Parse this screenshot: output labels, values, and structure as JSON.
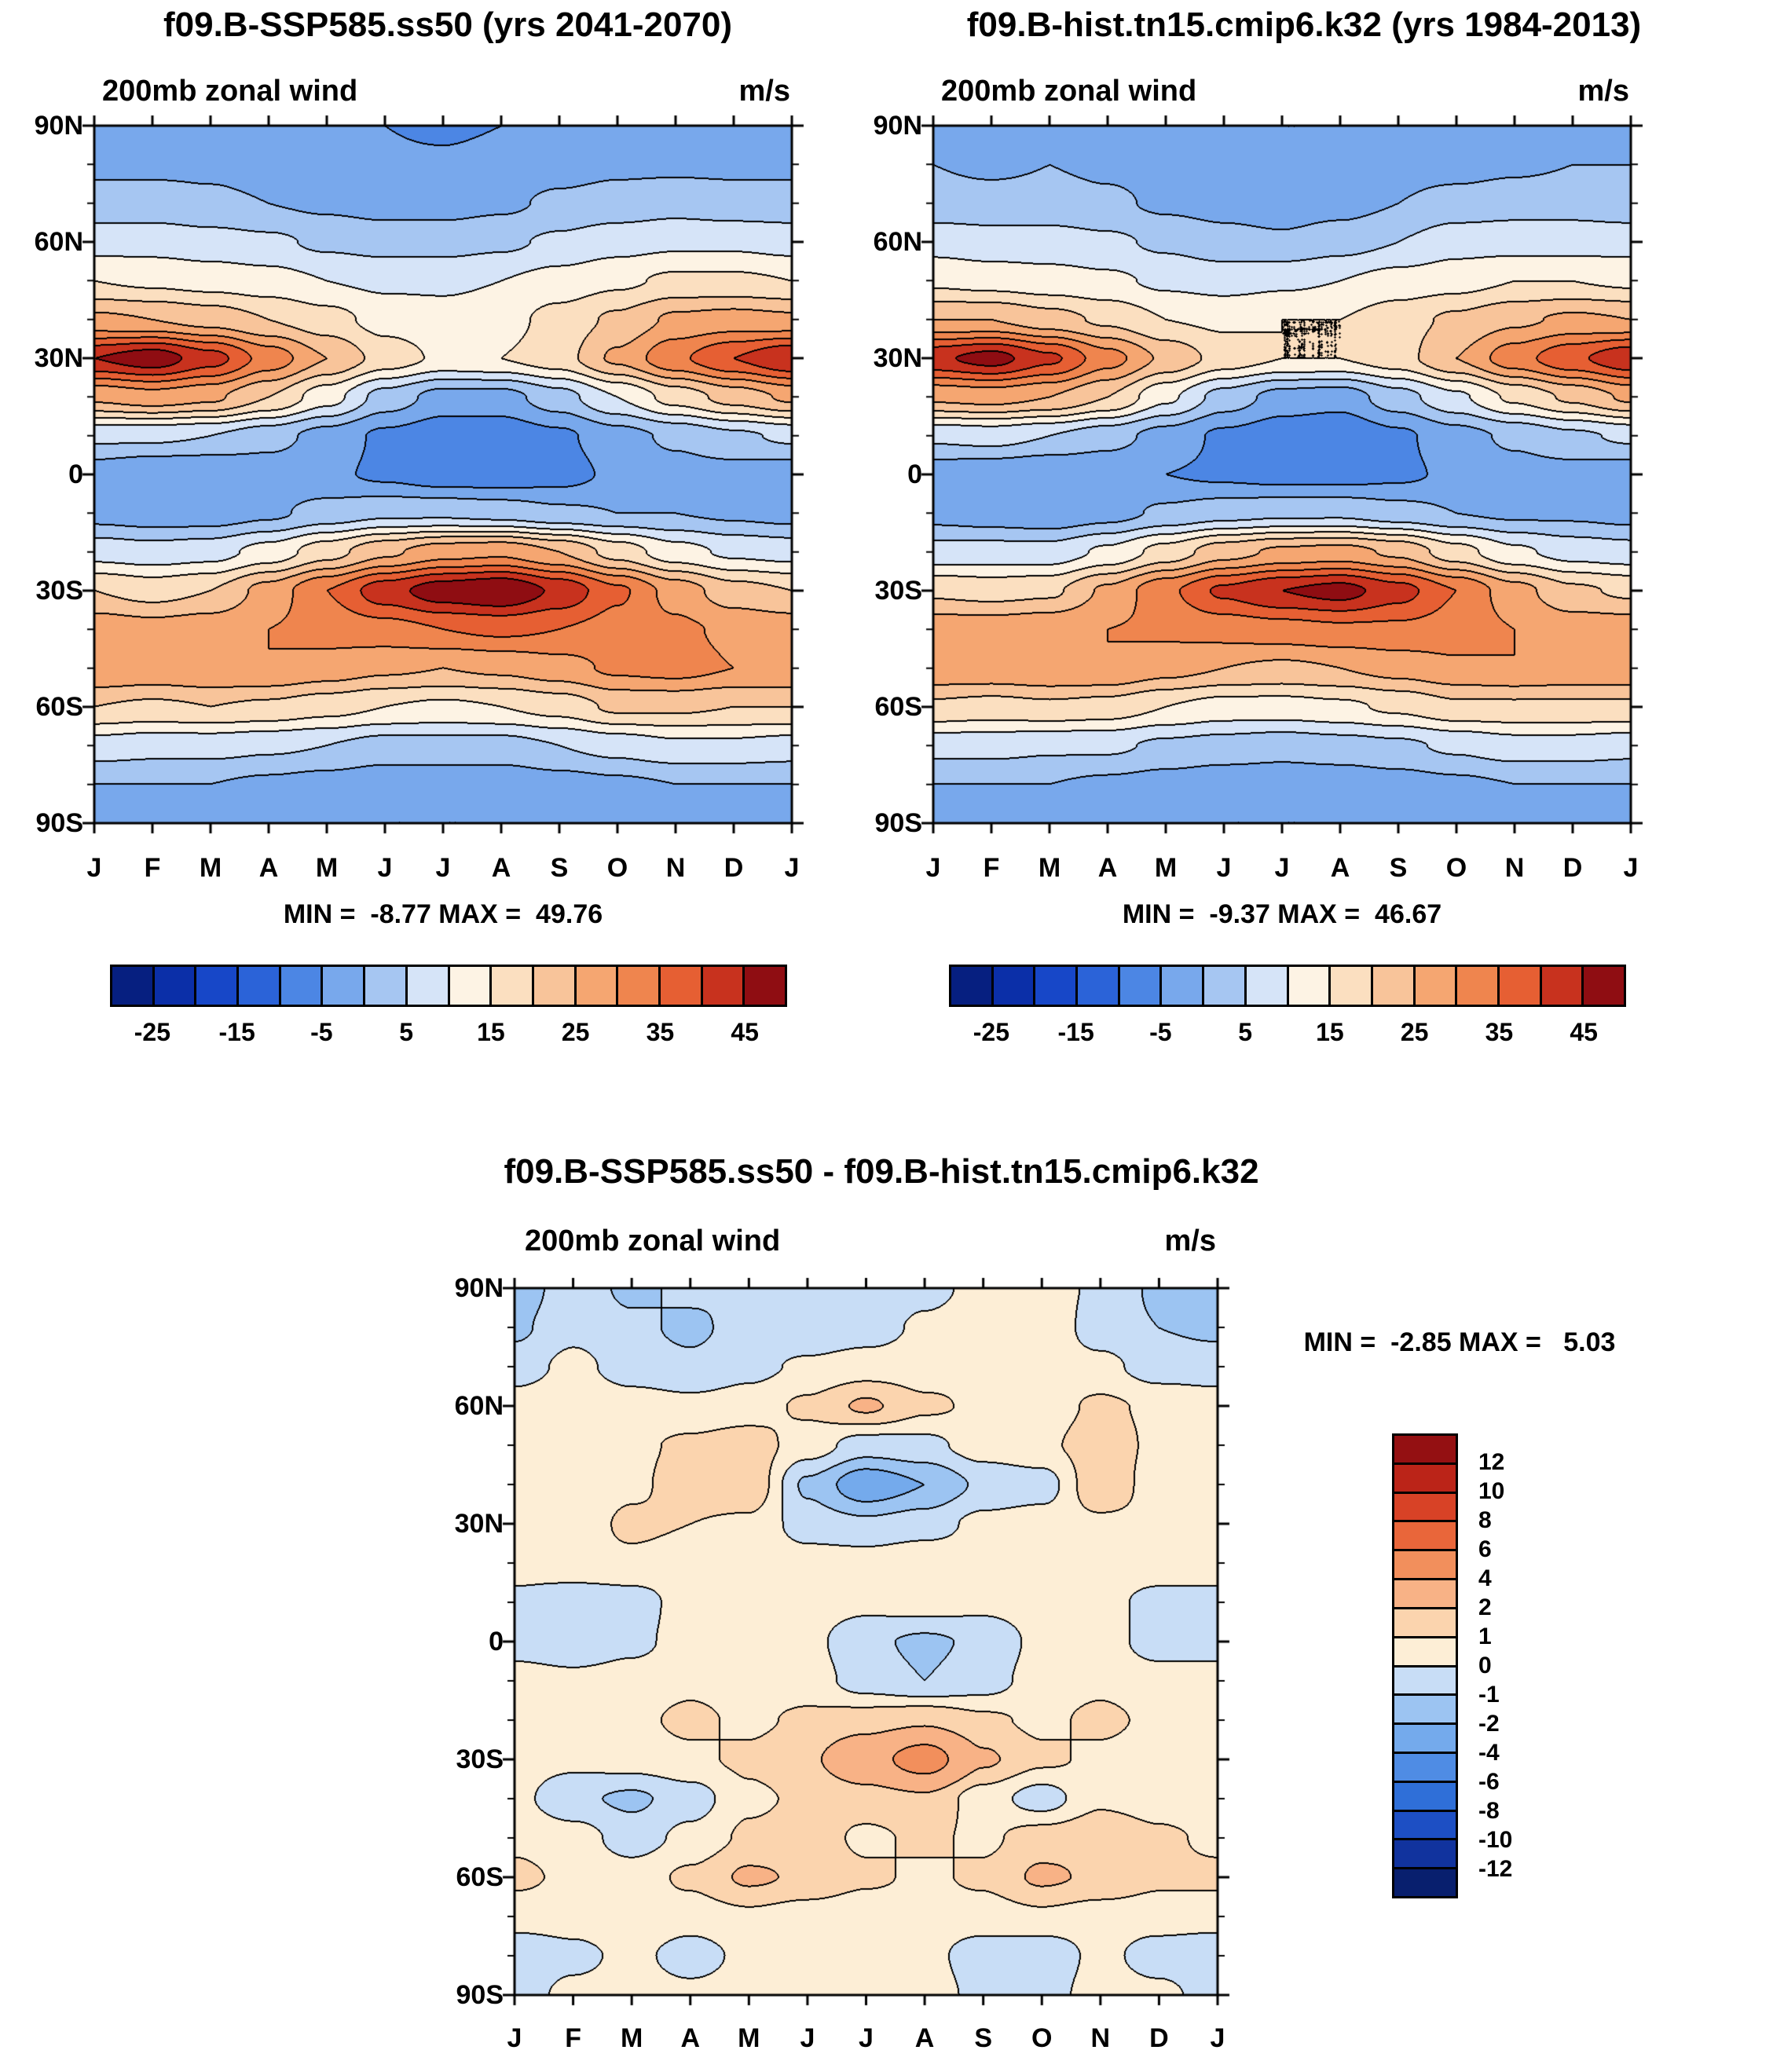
{
  "page": {
    "background": "#ffffff",
    "text_color": "#000000"
  },
  "panels": {
    "ssp": {
      "title": "f09.B-SSP585.ss50 (yrs 2041-2070)",
      "subtitle": "200mb zonal wind",
      "units": "m/s",
      "stats": "MIN =  -8.77 MAX =  49.76"
    },
    "hist": {
      "title": "f09.B-hist.tn15.cmip6.k32 (yrs 1984-2013)",
      "subtitle": "200mb zonal wind",
      "units": "m/s",
      "stats": "MIN =  -9.37 MAX =  46.67"
    },
    "diff": {
      "title": "f09.B-SSP585.ss50 - f09.B-hist.tn15.cmip6.k32",
      "subtitle": "200mb zonal wind",
      "units": "m/s",
      "stats": "MIN =  -2.85 MAX =   5.03"
    }
  },
  "axes": {
    "lat_labels": [
      "90N",
      "60N",
      "30N",
      "0",
      "30S",
      "60S",
      "90S"
    ],
    "month_labels": [
      "J",
      "F",
      "M",
      "A",
      "M",
      "J",
      "J",
      "A",
      "S",
      "O",
      "N",
      "D",
      "J"
    ]
  },
  "colorbar_main": {
    "labels": [
      "-25",
      "-15",
      "-5",
      "5",
      "15",
      "25",
      "35",
      "45"
    ],
    "levels": [
      -25,
      -20,
      -15,
      -10,
      -5,
      0,
      5,
      10,
      15,
      20,
      25,
      30,
      35,
      40,
      45
    ],
    "colors": [
      "#061f80",
      "#0b2fa8",
      "#1747c8",
      "#2b63d8",
      "#4c86e4",
      "#78a8ec",
      "#a6c6f2",
      "#d6e4f8",
      "#fdf3e4",
      "#fbdfc0",
      "#f8c49a",
      "#f5a671",
      "#ef854e",
      "#e65f33",
      "#c8321e",
      "#8f0d12"
    ]
  },
  "colorbar_diff": {
    "labels_top_to_bottom": [
      "12",
      "10",
      "8",
      "6",
      "4",
      "2",
      "1",
      "0",
      "-1",
      "-2",
      "-4",
      "-6",
      "-8",
      "-10",
      "-12"
    ],
    "levels": [
      -12,
      -10,
      -8,
      -6,
      -4,
      -2,
      -1,
      0,
      1,
      2,
      4,
      6,
      8,
      10,
      12
    ],
    "colors_low_to_high": [
      "#081f6e",
      "#11339e",
      "#1d4fc4",
      "#2f6fd8",
      "#4f8ce4",
      "#74aaec",
      "#9cc4f2",
      "#c8ddf6",
      "#fdeed6",
      "#fbd4ae",
      "#f8b286",
      "#f28f5c",
      "#e9663a",
      "#d84226",
      "#bb2418",
      "#941012"
    ]
  },
  "chart_data": [
    {
      "type": "heatmap",
      "name": "f09.B-SSP585.ss50",
      "period": "yrs 2041-2070",
      "title": "200mb zonal wind",
      "units": "m/s",
      "x_labels": [
        "J",
        "F",
        "M",
        "A",
        "M",
        "J",
        "J",
        "A",
        "S",
        "O",
        "N",
        "D",
        "J"
      ],
      "y_tick_labels": [
        "90N",
        "60N",
        "30N",
        "0",
        "30S",
        "60S",
        "90S"
      ],
      "lat_values": [
        90,
        80,
        70,
        60,
        50,
        40,
        30,
        20,
        10,
        0,
        -10,
        -20,
        -30,
        -40,
        -50,
        -60,
        -70,
        -80,
        -90
      ],
      "min": -8.77,
      "max": 49.76,
      "contour_interval": 5,
      "values": [
        [
          -2,
          -2,
          -2,
          -3,
          -4,
          -5,
          -6,
          -5,
          -3,
          -2,
          -2,
          -2,
          -2
        ],
        [
          -1,
          -1,
          -1,
          -2,
          -3,
          -4,
          -4,
          -3,
          -2,
          -1,
          -1,
          -1,
          -1
        ],
        [
          2,
          2,
          1,
          0,
          -1,
          -2,
          -2,
          -1,
          1,
          2,
          3,
          2,
          2
        ],
        [
          8,
          8,
          7,
          6,
          4,
          3,
          3,
          4,
          6,
          8,
          9,
          9,
          8
        ],
        [
          15,
          14,
          13,
          12,
          10,
          9,
          9,
          10,
          12,
          14,
          16,
          16,
          15
        ],
        [
          26,
          25,
          23,
          20,
          17,
          13,
          12,
          13,
          17,
          21,
          26,
          27,
          26
        ],
        [
          45,
          48,
          42,
          33,
          25,
          18,
          14,
          15,
          18,
          26,
          34,
          40,
          45
        ],
        [
          26,
          28,
          26,
          20,
          12,
          3,
          -2,
          -2,
          3,
          10,
          17,
          22,
          26
        ],
        [
          6,
          6,
          5,
          2,
          -2,
          -6,
          -8,
          -8,
          -6,
          -2,
          1,
          4,
          6
        ],
        [
          -3,
          -5,
          -5,
          -3,
          -4,
          -6,
          -8,
          -8,
          -7,
          -4,
          -2,
          -2,
          -3
        ],
        [
          -2,
          -3,
          -3,
          -1,
          2,
          4,
          4,
          3,
          1,
          0,
          0,
          -1,
          -2
        ],
        [
          8,
          7,
          8,
          12,
          18,
          24,
          28,
          29,
          25,
          18,
          12,
          9,
          8
        ],
        [
          20,
          18,
          20,
          27,
          35,
          43,
          48,
          50,
          44,
          36,
          28,
          22,
          20
        ],
        [
          28,
          27,
          28,
          30,
          32,
          33,
          35,
          36,
          35,
          33,
          31,
          29,
          28
        ],
        [
          30,
          29,
          30,
          30,
          28,
          26,
          25,
          26,
          28,
          31,
          32,
          30,
          30
        ],
        [
          20,
          19,
          20,
          19,
          17,
          15,
          14,
          15,
          17,
          21,
          21,
          20,
          20
        ],
        [
          8,
          7,
          7,
          6,
          5,
          3,
          3,
          3,
          5,
          7,
          9,
          9,
          8
        ],
        [
          0,
          0,
          0,
          -1,
          -2,
          -3,
          -3,
          -3,
          -2,
          -1,
          0,
          0,
          0
        ],
        [
          -3,
          -3,
          -3,
          -4,
          -4,
          -5,
          -5,
          -5,
          -4,
          -4,
          -3,
          -3,
          -3
        ]
      ]
    },
    {
      "type": "heatmap",
      "name": "f09.B-hist.tn15.cmip6.k32",
      "period": "yrs 1984-2013",
      "title": "200mb zonal wind",
      "units": "m/s",
      "x_labels": [
        "J",
        "F",
        "M",
        "A",
        "M",
        "J",
        "J",
        "A",
        "S",
        "O",
        "N",
        "D",
        "J"
      ],
      "y_tick_labels": [
        "90N",
        "60N",
        "30N",
        "0",
        "30S",
        "60S",
        "90S"
      ],
      "lat_values": [
        90,
        80,
        70,
        60,
        50,
        40,
        30,
        20,
        10,
        0,
        -10,
        -20,
        -30,
        -40,
        -50,
        -60,
        -70,
        -80,
        -90
      ],
      "min": -9.37,
      "max": 46.67,
      "contour_interval": 5,
      "values": [
        [
          -1,
          -2,
          -1,
          -2,
          -3,
          -4,
          -5,
          -5,
          -3,
          -2,
          -2,
          -1,
          -1
        ],
        [
          0,
          -1,
          0,
          -1,
          -2,
          -3,
          -4,
          -3,
          -2,
          -2,
          -1,
          0,
          0
        ],
        [
          2,
          2,
          2,
          1,
          -1,
          -2,
          -3,
          -2,
          0,
          2,
          3,
          3,
          2
        ],
        [
          8,
          7,
          7,
          6,
          4,
          2,
          1,
          3,
          5,
          8,
          8,
          8,
          8
        ],
        [
          14,
          13,
          12,
          11,
          9,
          8,
          9,
          10,
          12,
          13,
          15,
          15,
          14
        ],
        [
          25,
          25,
          22,
          19,
          15,
          14,
          15,
          15,
          18,
          21,
          24,
          26,
          25
        ],
        [
          44,
          47,
          41,
          32,
          24,
          18,
          15,
          15,
          18,
          25,
          33,
          39,
          44
        ],
        [
          26,
          27,
          25,
          20,
          11,
          3,
          -2,
          -3,
          3,
          9,
          16,
          21,
          26
        ],
        [
          6,
          7,
          5,
          2,
          -2,
          -6,
          -8,
          -9,
          -6,
          -2,
          1,
          4,
          6
        ],
        [
          -3,
          -4,
          -5,
          -4,
          -5,
          -6,
          -7,
          -7,
          -6,
          -4,
          -2,
          -2,
          -3
        ],
        [
          -2,
          -3,
          -4,
          -2,
          1,
          3,
          4,
          4,
          2,
          0,
          -1,
          -1,
          -2
        ],
        [
          7,
          7,
          7,
          11,
          17,
          23,
          26,
          27,
          24,
          17,
          11,
          8,
          7
        ],
        [
          19,
          18,
          19,
          26,
          34,
          41,
          45,
          47,
          42,
          35,
          27,
          21,
          19
        ],
        [
          28,
          28,
          29,
          30,
          31,
          32,
          33,
          34,
          34,
          33,
          30,
          28,
          28
        ],
        [
          29,
          29,
          30,
          30,
          27,
          25,
          24,
          25,
          27,
          29,
          30,
          29,
          29
        ],
        [
          19,
          18,
          19,
          18,
          15,
          13,
          13,
          14,
          16,
          19,
          19,
          19,
          19
        ],
        [
          7,
          7,
          6,
          6,
          4,
          3,
          2,
          3,
          4,
          6,
          8,
          8,
          7
        ],
        [
          0,
          0,
          0,
          -1,
          -2,
          -3,
          -3,
          -3,
          -2,
          -1,
          0,
          0,
          0
        ],
        [
          -3,
          -3,
          -3,
          -4,
          -4,
          -5,
          -5,
          -5,
          -4,
          -4,
          -3,
          -3,
          -3
        ]
      ]
    },
    {
      "type": "heatmap",
      "name": "f09.B-SSP585.ss50 - f09.B-hist.tn15.cmip6.k32",
      "title": "200mb zonal wind",
      "units": "m/s",
      "x_labels": [
        "J",
        "F",
        "M",
        "A",
        "M",
        "J",
        "J",
        "A",
        "S",
        "O",
        "N",
        "D",
        "J"
      ],
      "y_tick_labels": [
        "90N",
        "60N",
        "30N",
        "0",
        "30S",
        "60S",
        "90S"
      ],
      "lat_values": [
        90,
        80,
        70,
        60,
        50,
        40,
        30,
        20,
        10,
        0,
        -10,
        -20,
        -30,
        -40,
        -50,
        -60,
        -70,
        -80,
        -90
      ],
      "min": -2.85,
      "max": 5.03,
      "contour_levels": [
        -12,
        -10,
        -8,
        -6,
        -4,
        -2,
        -1,
        0,
        1,
        2,
        4,
        6,
        8,
        10,
        12
      ],
      "values": [
        [
          -1.5,
          -0.5,
          -1.2,
          -0.8,
          -1.0,
          -0.5,
          -1.0,
          -0.3,
          0.3,
          0.5,
          -0.2,
          -1.2,
          -1.5
        ],
        [
          -1.2,
          -0.3,
          -0.8,
          -1.2,
          -0.6,
          -0.8,
          -0.5,
          0.2,
          0.5,
          0.8,
          -0.5,
          -1.0,
          -1.2
        ],
        [
          -0.5,
          0.3,
          -0.5,
          -0.8,
          -0.3,
          0.2,
          0.5,
          0.5,
          0.8,
          0.5,
          0.3,
          -0.5,
          -0.5
        ],
        [
          0.5,
          0.8,
          0.5,
          0.3,
          0.5,
          1.2,
          2.2,
          1.2,
          0.8,
          0.5,
          1.2,
          0.8,
          0.5
        ],
        [
          0.8,
          0.5,
          0.8,
          1.2,
          1.5,
          0.5,
          -0.5,
          -0.3,
          0.5,
          0.8,
          1.5,
          0.8,
          0.8
        ],
        [
          0.5,
          0.3,
          0.8,
          1.5,
          1.8,
          -1.2,
          -2.8,
          -2.0,
          -0.8,
          -0.5,
          1.8,
          0.5,
          0.5
        ],
        [
          0.8,
          0.5,
          1.2,
          1.0,
          0.8,
          -0.5,
          -0.8,
          -0.5,
          0.3,
          0.5,
          0.8,
          0.8,
          0.8
        ],
        [
          0.5,
          0.8,
          0.8,
          0.5,
          0.8,
          0.5,
          0.5,
          0.8,
          0.5,
          0.8,
          0.5,
          0.5,
          0.5
        ],
        [
          -0.3,
          -0.8,
          -0.5,
          0.5,
          0.8,
          0.5,
          0.3,
          0.5,
          0.3,
          0.5,
          0.3,
          -0.3,
          -0.3
        ],
        [
          -0.5,
          -0.8,
          -0.3,
          0.5,
          0.5,
          0.3,
          -0.8,
          -1.2,
          -0.8,
          0.3,
          0.5,
          -0.5,
          -0.5
        ],
        [
          0.5,
          0.3,
          0.5,
          0.8,
          0.5,
          0.5,
          -0.5,
          -1.0,
          -0.5,
          0.5,
          0.8,
          0.5,
          0.5
        ],
        [
          0.8,
          0.5,
          0.8,
          1.2,
          0.8,
          1.2,
          1.5,
          1.8,
          1.2,
          0.8,
          1.2,
          0.8,
          0.8
        ],
        [
          0.5,
          0.3,
          0.5,
          0.8,
          1.2,
          1.8,
          3.2,
          5.0,
          2.2,
          1.2,
          0.8,
          0.5,
          0.5
        ],
        [
          0.3,
          -0.8,
          -1.2,
          -0.5,
          0.8,
          1.2,
          1.5,
          1.8,
          0.5,
          -0.5,
          0.8,
          0.5,
          0.3
        ],
        [
          0.8,
          0.5,
          -0.5,
          0.3,
          1.2,
          1.5,
          0.8,
          1.2,
          0.8,
          1.5,
          1.8,
          1.2,
          0.8
        ],
        [
          1.2,
          0.8,
          0.5,
          1.2,
          2.2,
          1.8,
          1.2,
          0.8,
          1.2,
          2.2,
          1.8,
          1.2,
          1.2
        ],
        [
          0.5,
          0.5,
          0.8,
          0.5,
          0.8,
          0.5,
          0.3,
          0.5,
          0.5,
          0.8,
          0.5,
          0.5,
          0.5
        ],
        [
          -0.8,
          -0.3,
          0.3,
          -0.5,
          0.3,
          0.5,
          0.5,
          0.3,
          -0.5,
          -0.8,
          0.3,
          -0.5,
          -0.8
        ],
        [
          -0.5,
          0.3,
          0.5,
          0.3,
          0.5,
          0.3,
          0.5,
          0.5,
          -0.3,
          -0.5,
          0.5,
          0.3,
          -0.5
        ]
      ]
    }
  ]
}
